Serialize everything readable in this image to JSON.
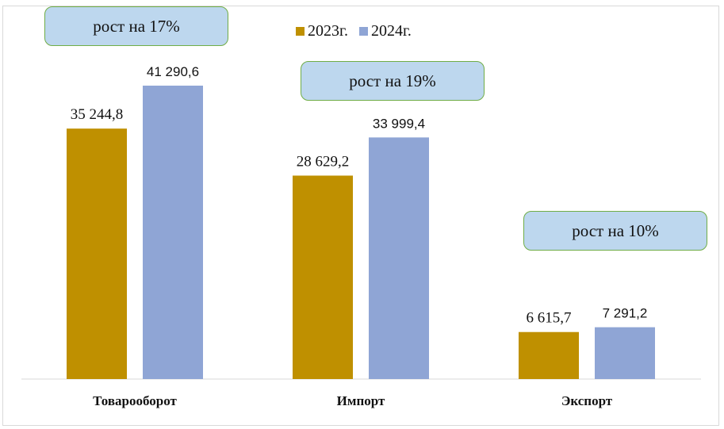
{
  "chart_data": {
    "type": "bar",
    "categories": [
      "Товарооборот",
      "Импорт",
      "Экспорт"
    ],
    "series": [
      {
        "name": "2023г.",
        "values": [
          35244.8,
          28629.2,
          6615.7
        ],
        "labels": [
          "35 244,8",
          "28 629,2",
          "6 615,7"
        ],
        "color": "#BF9000"
      },
      {
        "name": "2024г.",
        "values": [
          41290.6,
          33999.4,
          7291.2
        ],
        "labels": [
          "41 290,6",
          "33 999,4",
          "7 291,2"
        ],
        "color": "#8FA5D5"
      }
    ],
    "annotations": [
      "рост на 17%",
      "рост на 19%",
      "рост на 10%"
    ],
    "legend_position": "top",
    "ylim": [
      0,
      41290.6
    ],
    "grid": false,
    "title": "",
    "xlabel": "",
    "ylabel": ""
  }
}
